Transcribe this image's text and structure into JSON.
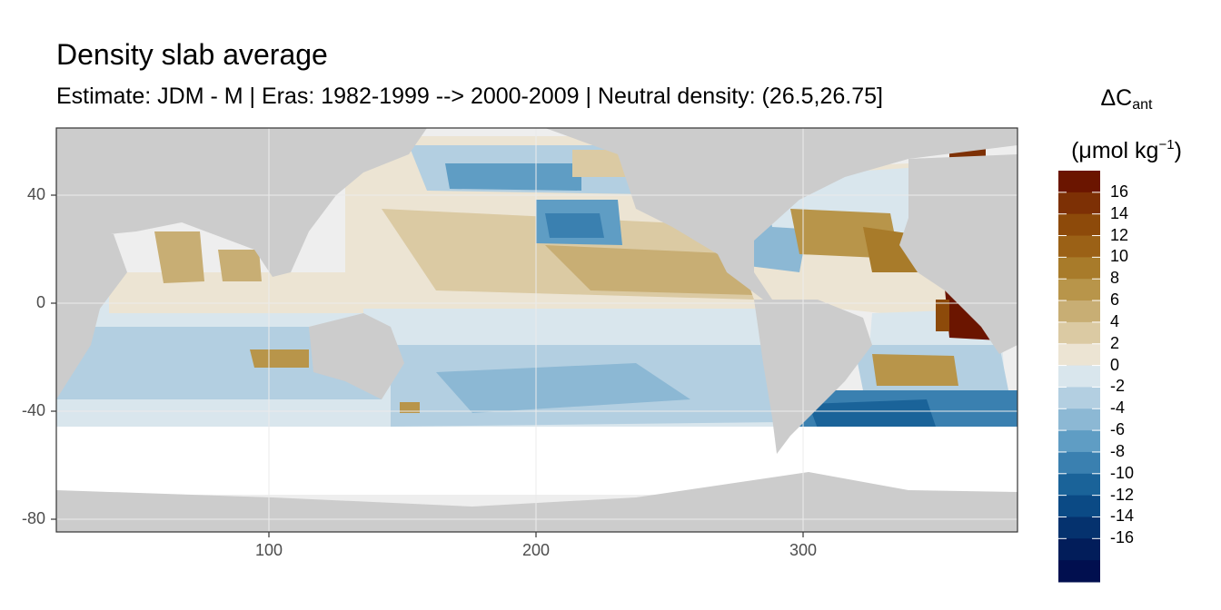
{
  "title": "Density slab average",
  "subtitle": "Estimate: JDM - M | Eras: 1982-1999 --> 2000-2009 | Neutral density: (26.5,26.75]",
  "legend": {
    "title_main": "ΔC",
    "title_sub": "ant",
    "unit_open": "(μmol kg",
    "unit_sup": "−1",
    "unit_close": ")",
    "colors": [
      "#6b1500",
      "#7d3005",
      "#8d4a0a",
      "#9b6116",
      "#a87b2a",
      "#b8954a",
      "#c8ae74",
      "#dbcaa3",
      "#ece4d3",
      "#d9e6ed",
      "#b3cfe1",
      "#8cb8d4",
      "#5f9dc4",
      "#3a80b0",
      "#1a6399",
      "#0b4a85",
      "#05326e",
      "#021d5a",
      "#010f4f"
    ],
    "labels": [
      "16",
      "14",
      "12",
      "10",
      "8",
      "6",
      "4",
      "2",
      "0",
      "-2",
      "-4",
      "-6",
      "-8",
      "-10",
      "-12",
      "-14",
      "-16"
    ]
  },
  "axes": {
    "x_ticks": [
      100,
      200,
      300
    ],
    "y_ticks": [
      40,
      0,
      -40,
      -80
    ],
    "xlim": [
      20,
      380
    ],
    "ylim": [
      -85,
      65
    ]
  },
  "colors": {
    "land": "#cccccc",
    "no_data": "#ffffff",
    "panel_border": "#333333",
    "grid": "#ebebeb"
  }
}
